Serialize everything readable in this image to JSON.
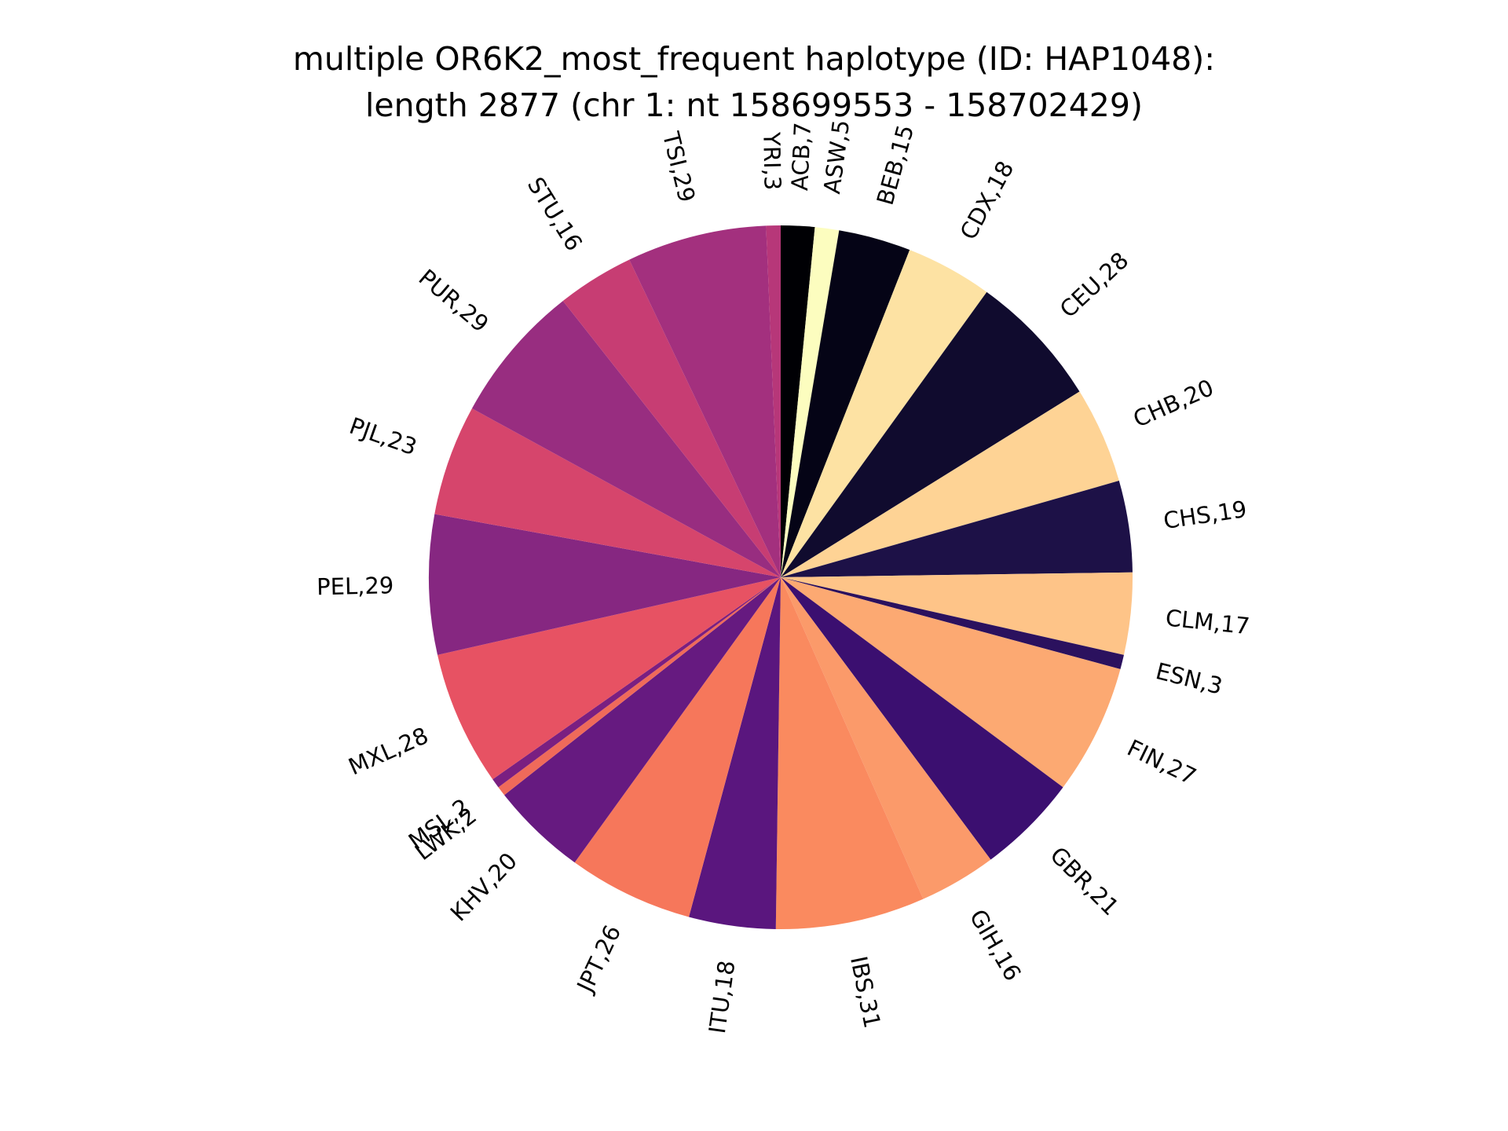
{
  "chart_data": {
    "type": "pie",
    "title_lines": [
      "multiple OR6K2_most_frequent haplotype (ID: HAP1048):",
      "length 2877 (chr 1: nt 158699553 - 158702429)"
    ],
    "start_angle_deg": 90,
    "direction": "clockwise",
    "legend": "none",
    "slices": [
      {
        "label": "ACB",
        "value": 7,
        "text": "ACB,7",
        "color": "#000004"
      },
      {
        "label": "ASW",
        "value": 5,
        "text": "ASW,5",
        "color": "#fcfdbf"
      },
      {
        "label": "BEB",
        "value": 15,
        "text": "BEB,15",
        "color": "#050416"
      },
      {
        "label": "CDX",
        "value": 18,
        "text": "CDX,18",
        "color": "#fde2a3"
      },
      {
        "label": "CEU",
        "value": 28,
        "text": "CEU,28",
        "color": "#100b2e"
      },
      {
        "label": "CHB",
        "value": 20,
        "text": "CHB,20",
        "color": "#fed395"
      },
      {
        "label": "CHS",
        "value": 19,
        "text": "CHS,19",
        "color": "#1d1147"
      },
      {
        "label": "CLM",
        "value": 17,
        "text": "CLM,17",
        "color": "#fec488"
      },
      {
        "label": "ESN",
        "value": 3,
        "text": "ESN,3",
        "color": "#2b115e"
      },
      {
        "label": "FIN",
        "value": 27,
        "text": "FIN,27",
        "color": "#fca972"
      },
      {
        "label": "GBR",
        "value": 21,
        "text": "GBR,21",
        "color": "#3b0f70"
      },
      {
        "label": "GIH",
        "value": 16,
        "text": "GIH,16",
        "color": "#fb9a6a"
      },
      {
        "label": "IBS",
        "value": 31,
        "text": "IBS,31",
        "color": "#fa8a5f"
      },
      {
        "label": "ITU",
        "value": 18,
        "text": "ITU,18",
        "color": "#5a167e"
      },
      {
        "label": "JPT",
        "value": 26,
        "text": "JPT,26",
        "color": "#f6775b"
      },
      {
        "label": "KHV",
        "value": 20,
        "text": "KHV,20",
        "color": "#661a80"
      },
      {
        "label": "LWK",
        "value": 2,
        "text": "LWK,2",
        "color": "#ef6a5a"
      },
      {
        "label": "MSL",
        "value": 2,
        "text": "MSL,2",
        "color": "#7a1f81"
      },
      {
        "label": "MXL",
        "value": 28,
        "text": "MXL,28",
        "color": "#e75263"
      },
      {
        "label": "PEL",
        "value": 29,
        "text": "PEL,29",
        "color": "#862781"
      },
      {
        "label": "PJL",
        "value": 23,
        "text": "PJL,23",
        "color": "#d6456c"
      },
      {
        "label": "PUR",
        "value": 29,
        "text": "PUR,29",
        "color": "#982d80"
      },
      {
        "label": "STU",
        "value": 16,
        "text": "STU,16",
        "color": "#c73d73"
      },
      {
        "label": "TSI",
        "value": 29,
        "text": "TSI,29",
        "color": "#a3307e"
      },
      {
        "label": "YRI",
        "value": 3,
        "text": "YRI,3",
        "color": "#b73779"
      }
    ]
  }
}
